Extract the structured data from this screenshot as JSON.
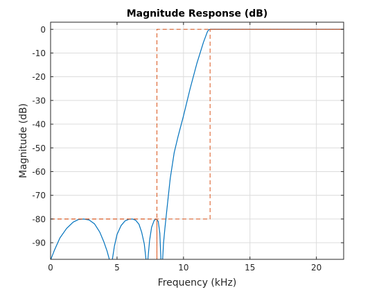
{
  "chart_data": {
    "type": "line",
    "title": "Magnitude Response (dB)",
    "xlabel": "Frequency (kHz)",
    "ylabel": "Magnitude (dB)",
    "xlim": [
      0,
      22.05
    ],
    "ylim": [
      -97,
      3
    ],
    "xticks": [
      0,
      5,
      10,
      15,
      20
    ],
    "xtick_labels": [
      "0",
      "5",
      "10",
      "15",
      "20"
    ],
    "yticks": [
      0,
      -10,
      -20,
      -30,
      -40,
      -50,
      -60,
      -70,
      -80,
      -90
    ],
    "ytick_labels": [
      "0",
      "-10",
      "-20",
      "-30",
      "-40",
      "-50",
      "-60",
      "-70",
      "-80",
      "-90"
    ],
    "grid": true,
    "legend": "none",
    "series": [
      {
        "style": "solid",
        "color": "#0072bd",
        "segments": [
          {
            "x": [
              0.02,
              0.3,
              0.7,
              1.2,
              1.7,
              2.1,
              2.5,
              2.9,
              3.3,
              3.7,
              4.0,
              4.25,
              4.42
            ],
            "y": [
              -97,
              -93,
              -88,
              -84,
              -81.3,
              -80.2,
              -80.0,
              -80.4,
              -82.0,
              -85.5,
              -89.5,
              -93.5,
              -97
            ]
          },
          {
            "x": [
              4.65,
              4.8,
              5.0,
              5.3,
              5.6,
              5.9,
              6.15,
              6.4,
              6.65,
              6.85,
              7.05,
              7.18
            ],
            "y": [
              -97,
              -91.5,
              -86.5,
              -82.8,
              -80.8,
              -80.1,
              -80.0,
              -80.5,
              -82.2,
              -85.5,
              -90.5,
              -97
            ]
          },
          {
            "x": [
              7.32,
              7.45,
              7.6,
              7.8,
              7.95,
              8.1,
              8.22,
              8.3
            ],
            "y": [
              -97,
              -89,
              -83.5,
              -80.5,
              -80.0,
              -81.0,
              -86,
              -97
            ]
          },
          {
            "x": [
              8.43,
              8.5,
              8.6,
              8.75,
              9.0,
              9.3,
              9.6,
              10.0,
              10.5,
              11.0,
              11.5,
              11.7,
              11.8,
              11.9,
              12.0,
              12.5,
              15,
              18,
              22.05
            ],
            "y": [
              -97,
              -90,
              -84,
              -76,
              -63,
              -52,
              -45,
              -36.5,
              -25,
              -14.5,
              -5.5,
              -2.5,
              -1.0,
              -0.2,
              0,
              0,
              0,
              0,
              0
            ]
          }
        ]
      },
      {
        "style": "dashed",
        "color": "#d95319",
        "segments": [
          {
            "x": [
              0,
              8,
              8
            ],
            "y": [
              -80,
              -80,
              -97
            ]
          },
          {
            "x": [
              8,
              8,
              22.05
            ],
            "y": [
              -97,
              0,
              0
            ]
          },
          {
            "x": [
              0,
              12,
              12,
              22.05
            ],
            "y": [
              -80,
              -80,
              0,
              0
            ]
          }
        ]
      }
    ]
  }
}
